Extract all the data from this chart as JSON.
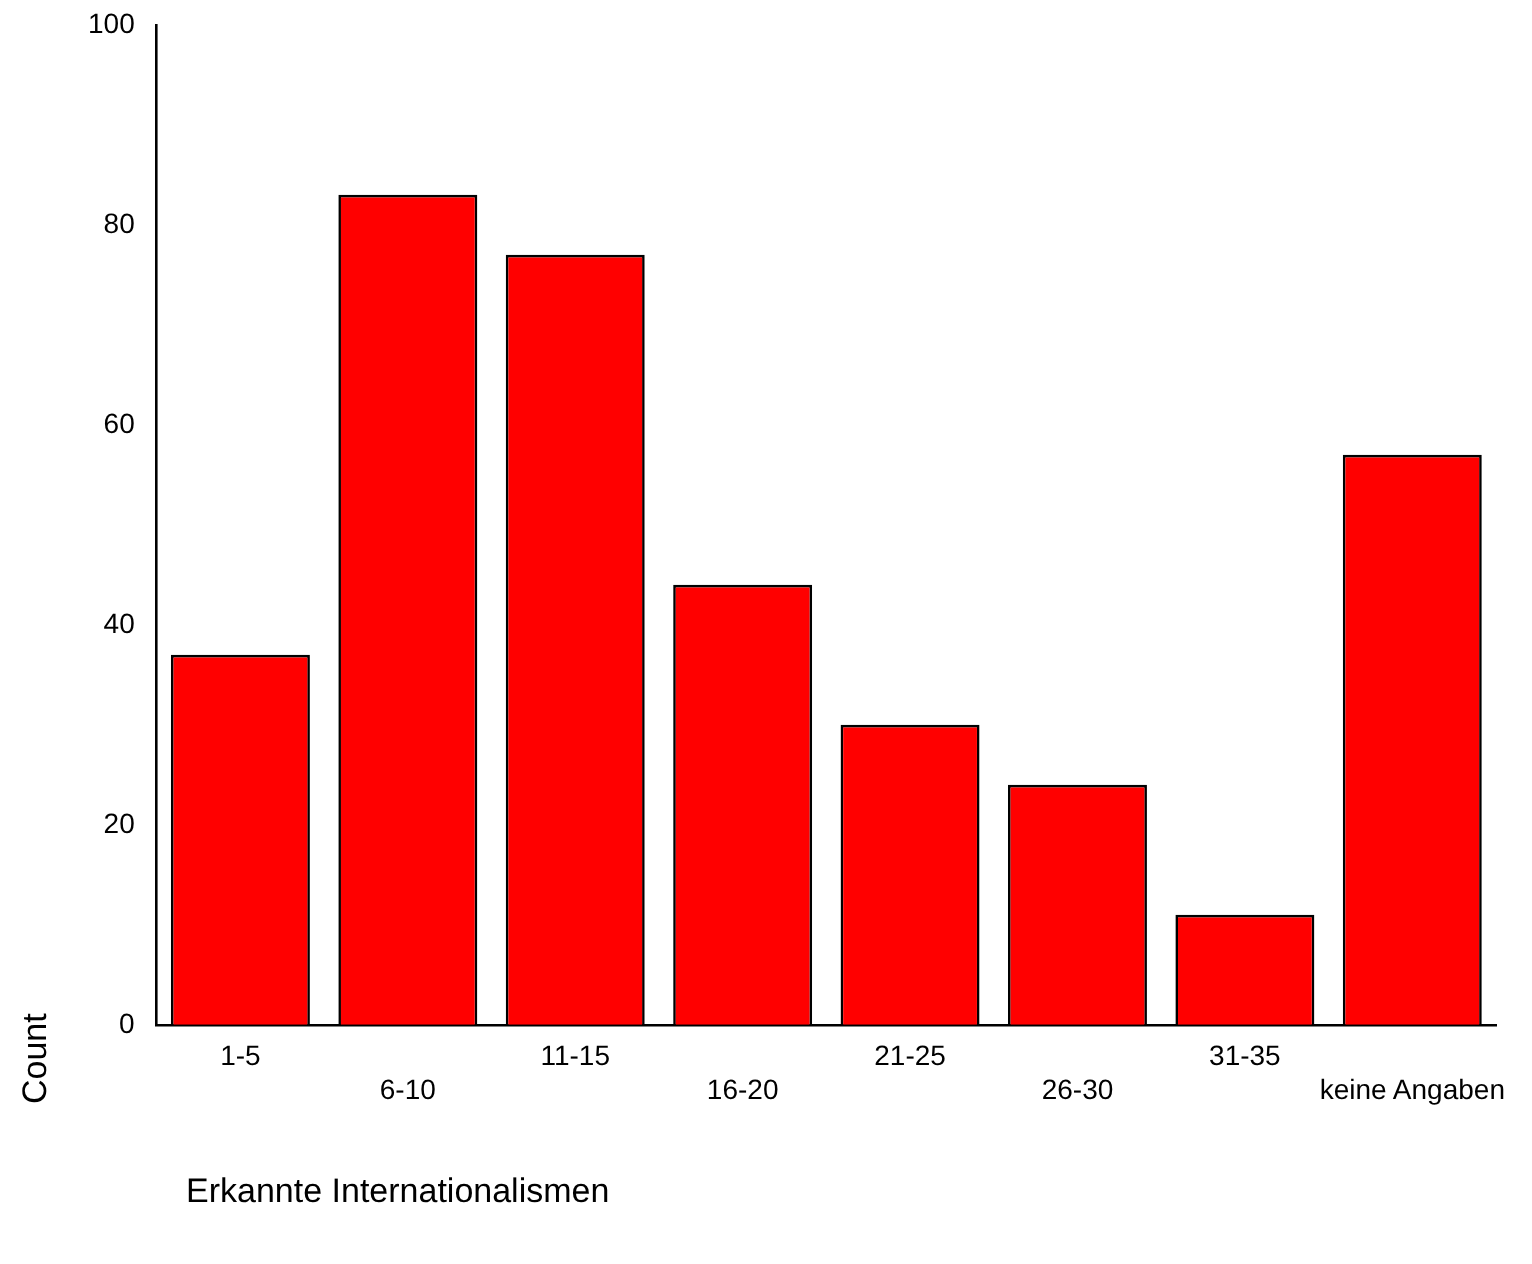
{
  "chart_data": {
    "type": "bar",
    "xlabel": "Erkannte Internationalismen",
    "ylabel": "Count",
    "categories": [
      "1-5",
      "6-10",
      "11-15",
      "16-20",
      "21-25",
      "26-30",
      "31-35",
      "keine Angaben"
    ],
    "values": [
      37,
      83,
      77,
      44,
      30,
      24,
      11,
      57
    ],
    "color": "#ff0000",
    "ylim": [
      0,
      100
    ],
    "yticks": [
      0,
      20,
      40,
      60,
      80,
      100
    ],
    "grid": false,
    "legend": false
  }
}
